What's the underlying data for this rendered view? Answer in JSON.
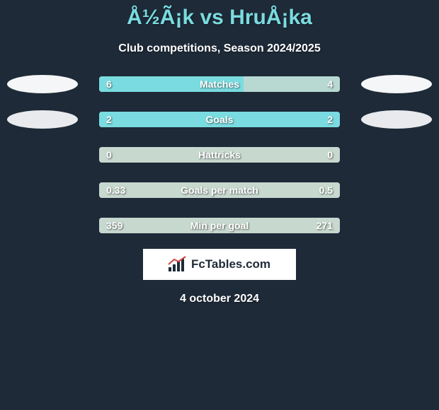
{
  "title": "Å½Ã¡k vs HruÅ¡ka",
  "subtitle": "Club competitions, Season 2024/2025",
  "date": "4 october 2024",
  "logo_text": "FcTables.com",
  "colors": {
    "background": "#1e2a38",
    "title": "#7adce0",
    "white": "#ffffff",
    "oval_light": "#f5f6f7",
    "oval_light2": "#e8eaed",
    "bar_base": "#c7d8cf",
    "bar_left_fill": "#7adce0",
    "bar_right_fill": "#a8d5d0"
  },
  "stats": [
    {
      "label": "Matches",
      "left_value": "6",
      "right_value": "4",
      "left_pct": 60,
      "right_pct": 40,
      "left_bar_color": "#7adce0",
      "right_bar_color": "#b7d9d2",
      "base_color": "#c7d8cf",
      "oval_left_color": "#f5f6f7",
      "oval_right_color": "#f5f6f7",
      "show_ovals": true
    },
    {
      "label": "Goals",
      "left_value": "2",
      "right_value": "2",
      "left_pct": 50,
      "right_pct": 50,
      "left_bar_color": "#7adce0",
      "right_bar_color": "#7adce0",
      "base_color": "#c7d8cf",
      "oval_left_color": "#e8eaed",
      "oval_right_color": "#e8eaed",
      "show_ovals": true
    },
    {
      "label": "Hattricks",
      "left_value": "0",
      "right_value": "0",
      "left_pct": 50,
      "right_pct": 50,
      "left_bar_color": "#c7d8cf",
      "right_bar_color": "#c7d8cf",
      "base_color": "#c7d8cf",
      "oval_left_color": "",
      "oval_right_color": "",
      "show_ovals": false
    },
    {
      "label": "Goals per match",
      "left_value": "0.33",
      "right_value": "0.5",
      "left_pct": 40,
      "right_pct": 60,
      "left_bar_color": "#c7d8cf",
      "right_bar_color": "#c7d8cf",
      "base_color": "#c7d8cf",
      "oval_left_color": "",
      "oval_right_color": "",
      "show_ovals": false
    },
    {
      "label": "Min per goal",
      "left_value": "359",
      "right_value": "271",
      "left_pct": 57,
      "right_pct": 43,
      "left_bar_color": "#c7d8cf",
      "right_bar_color": "#c7d8cf",
      "base_color": "#c7d8cf",
      "oval_left_color": "",
      "oval_right_color": "",
      "show_ovals": false
    }
  ]
}
